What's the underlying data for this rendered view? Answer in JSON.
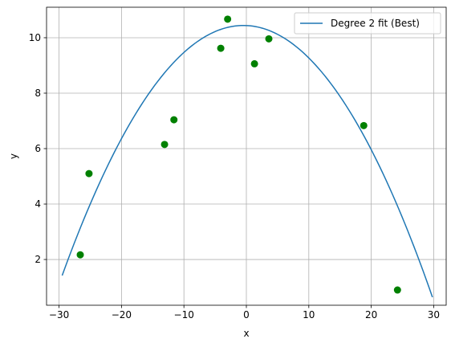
{
  "chart_data": {
    "type": "scatter",
    "xlabel": "x",
    "ylabel": "y",
    "xlim": [
      -32,
      32
    ],
    "ylim": [
      0.35,
      11.1
    ],
    "xticks": [
      -30,
      -20,
      -10,
      0,
      10,
      20,
      30
    ],
    "yticks": [
      2,
      4,
      6,
      8,
      10
    ],
    "grid": true,
    "legend_position": "top-right",
    "scatter": {
      "color": "#008000",
      "points": [
        {
          "x": -26.6,
          "y": 2.17
        },
        {
          "x": -25.2,
          "y": 5.1
        },
        {
          "x": -13.1,
          "y": 6.15
        },
        {
          "x": -11.6,
          "y": 7.04
        },
        {
          "x": -4.1,
          "y": 9.62
        },
        {
          "x": -3.0,
          "y": 10.67
        },
        {
          "x": 1.3,
          "y": 9.06
        },
        {
          "x": 3.6,
          "y": 9.96
        },
        {
          "x": 18.8,
          "y": 6.83
        },
        {
          "x": 24.2,
          "y": 0.9
        }
      ]
    },
    "series": [
      {
        "name": "Degree 2 fit (Best)",
        "color": "#1f77b4",
        "x_range": [
          -29.5,
          29.8
        ],
        "coefficients": [
          10.44,
          -0.01,
          -0.0107
        ]
      }
    ]
  }
}
